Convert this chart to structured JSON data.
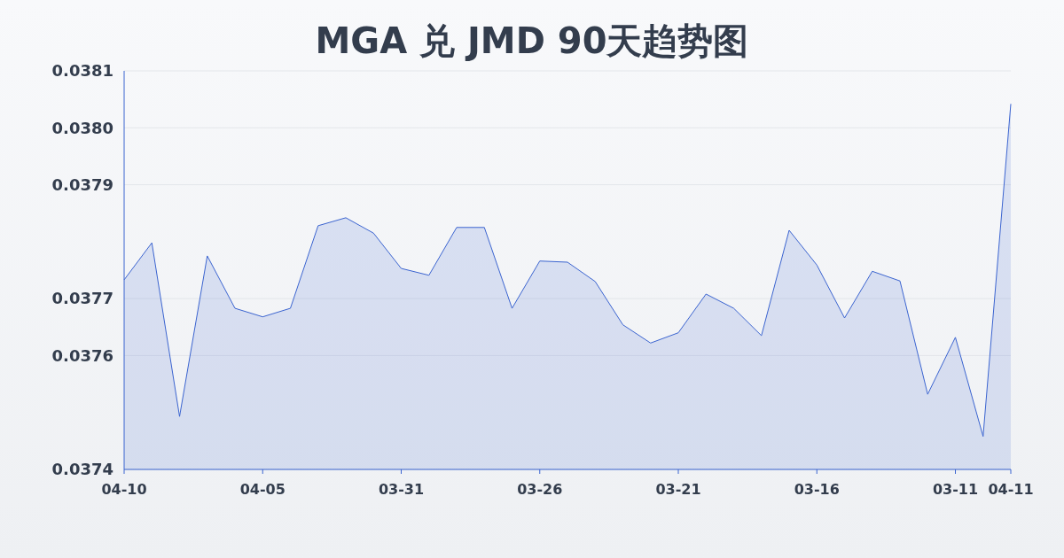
{
  "chart_data": {
    "type": "area",
    "title": "MGA 兑 JMD 90天趋势图",
    "categories": [
      "04-10",
      null,
      null,
      null,
      null,
      "04-05",
      null,
      null,
      null,
      null,
      "03-31",
      null,
      null,
      null,
      null,
      "03-26",
      null,
      null,
      null,
      null,
      "03-21",
      null,
      null,
      null,
      null,
      "03-16",
      null,
      null,
      null,
      null,
      "03-11",
      null,
      "04-11"
    ],
    "series": [
      {
        "color": "#3b64d0",
        "values": [
          0.037733,
          0.037798,
          0.037493,
          0.037775,
          0.037683,
          0.037668,
          0.037683,
          0.037828,
          0.037842,
          0.037815,
          0.037753,
          0.037741,
          0.037825,
          0.037825,
          0.037683,
          0.037766,
          0.037764,
          0.03773,
          0.037654,
          0.037622,
          0.03764,
          0.037708,
          0.037683,
          0.037635,
          0.03782,
          0.037759,
          0.037666,
          0.037748,
          0.037731,
          0.037532,
          0.037632,
          0.037458,
          0.038042
        ]
      }
    ],
    "ylim": [
      0.0374,
      0.0381
    ],
    "yticks": [
      {
        "value": 0.0374,
        "label": "0.0374"
      },
      {
        "value": 0.0376,
        "label": "0.0376"
      },
      {
        "value": 0.0377,
        "label": "0.0377"
      },
      {
        "value": 0.0379,
        "label": "0.0379"
      },
      {
        "value": 0.038,
        "label": "0.0380"
      },
      {
        "value": 0.0381,
        "label": "0.0381"
      }
    ],
    "grid": "y"
  }
}
